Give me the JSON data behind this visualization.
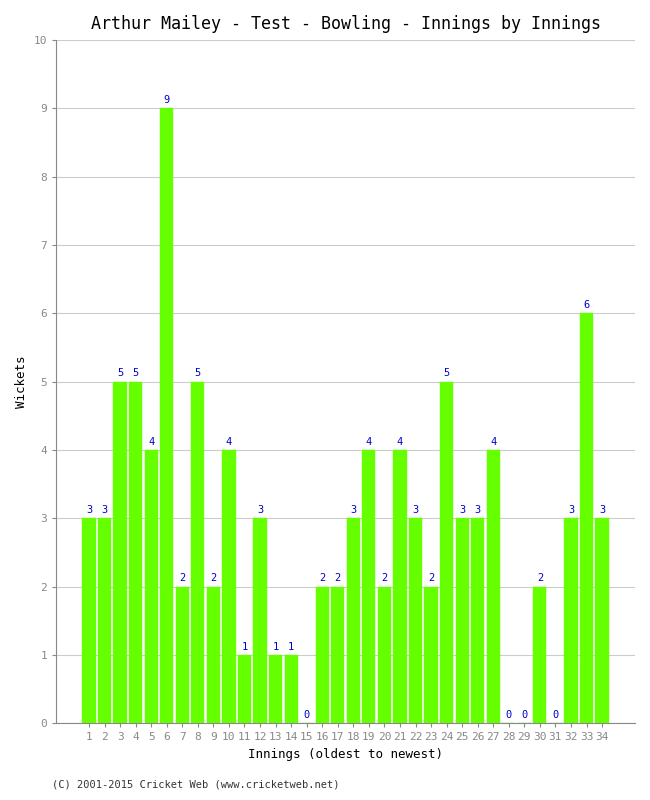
{
  "title": "Arthur Mailey - Test - Bowling - Innings by Innings",
  "xlabel": "Innings (oldest to newest)",
  "ylabel": "Wickets",
  "footer": "(C) 2001-2015 Cricket Web (www.cricketweb.net)",
  "innings": [
    1,
    2,
    3,
    4,
    5,
    6,
    7,
    8,
    9,
    10,
    11,
    12,
    13,
    14,
    15,
    16,
    17,
    18,
    19,
    20,
    21,
    22,
    23,
    24,
    25,
    26,
    27,
    28,
    29,
    30,
    31,
    32,
    33,
    34
  ],
  "wickets": [
    3,
    3,
    5,
    5,
    4,
    9,
    2,
    5,
    2,
    4,
    1,
    3,
    1,
    1,
    0,
    2,
    2,
    3,
    4,
    2,
    4,
    3,
    2,
    5,
    3,
    3,
    4,
    0,
    0,
    2,
    0,
    3,
    6,
    3
  ],
  "bar_color": "#66ff00",
  "bar_edge_color": "#66ff00",
  "label_color": "#0000cc",
  "background_color": "#ffffff",
  "grid_color": "#cccccc",
  "ylim": [
    0,
    10
  ],
  "yticks": [
    0,
    1,
    2,
    3,
    4,
    5,
    6,
    7,
    8,
    9,
    10
  ],
  "title_fontsize": 12,
  "label_fontsize": 9,
  "tick_fontsize": 8,
  "value_label_fontsize": 7.5,
  "footer_fontsize": 7.5
}
